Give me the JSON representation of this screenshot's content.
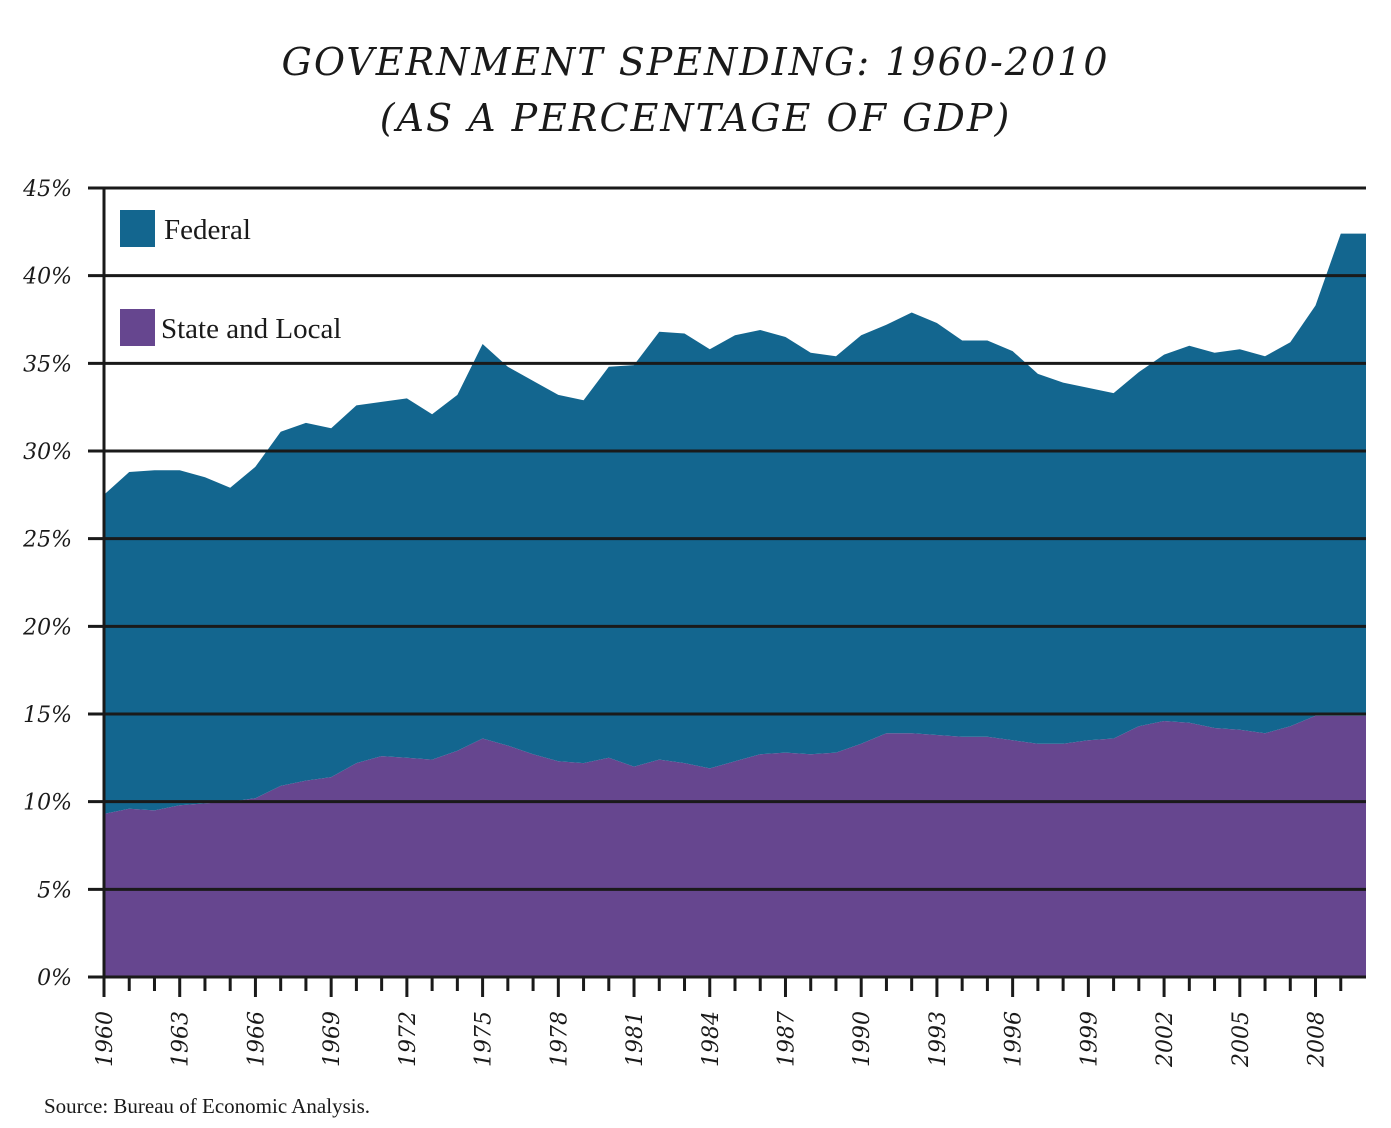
{
  "chart_data": {
    "type": "area",
    "title": "GOVERNMENT SPENDING: 1960-2010",
    "subtitle": "(AS A PERCENTAGE OF GDP)",
    "xlabel": "",
    "ylabel": "",
    "ylim": [
      0,
      45
    ],
    "xlim": [
      1960,
      2010
    ],
    "stacked": true,
    "grid": true,
    "legend": "top-left",
    "y_tick_labels": [
      "0%",
      "5%",
      "10%",
      "15%",
      "20%",
      "25%",
      "30%",
      "35%",
      "40%",
      "45%"
    ],
    "y_ticks": [
      0,
      5,
      10,
      15,
      20,
      25,
      30,
      35,
      40,
      45
    ],
    "x_tick_labels": [
      "1960",
      "1963",
      "1966",
      "1969",
      "1972",
      "1975",
      "1978",
      "1981",
      "1984",
      "1987",
      "1990",
      "1993",
      "1996",
      "1999",
      "2002",
      "2005",
      "2008"
    ],
    "x": [
      1960,
      1961,
      1962,
      1963,
      1964,
      1965,
      1966,
      1967,
      1968,
      1969,
      1970,
      1971,
      1972,
      1973,
      1974,
      1975,
      1976,
      1977,
      1978,
      1979,
      1980,
      1981,
      1982,
      1983,
      1984,
      1985,
      1986,
      1987,
      1988,
      1989,
      1990,
      1991,
      1992,
      1993,
      1994,
      1995,
      1996,
      1997,
      1998,
      1999,
      2000,
      2001,
      2002,
      2003,
      2004,
      2005,
      2006,
      2007,
      2008,
      2009,
      2010
    ],
    "series": [
      {
        "name": "State and Local",
        "color": "#66468f",
        "values": [
          9.3,
          9.6,
          9.5,
          9.8,
          9.9,
          10.0,
          10.2,
          10.9,
          11.2,
          11.4,
          12.2,
          12.6,
          12.5,
          12.4,
          12.9,
          13.6,
          13.2,
          12.7,
          12.3,
          12.2,
          12.5,
          12.0,
          12.4,
          12.2,
          11.9,
          12.3,
          12.7,
          12.8,
          12.7,
          12.8,
          13.3,
          13.9,
          13.9,
          13.8,
          13.7,
          13.7,
          13.5,
          13.3,
          13.3,
          13.5,
          13.6,
          14.3,
          14.6,
          14.5,
          14.2,
          14.1,
          13.9,
          14.3,
          14.9,
          14.9,
          14.9
        ]
      },
      {
        "name": "Federal",
        "color": "#13668f",
        "values": [
          18.2,
          19.2,
          19.4,
          19.1,
          18.6,
          17.9,
          18.9,
          20.2,
          20.4,
          19.9,
          20.4,
          20.2,
          20.5,
          19.7,
          20.3,
          22.5,
          21.6,
          21.3,
          20.9,
          20.7,
          22.3,
          22.9,
          24.4,
          24.5,
          23.9,
          24.3,
          24.2,
          23.7,
          22.9,
          22.6,
          23.3,
          23.3,
          24.0,
          23.5,
          22.6,
          22.6,
          22.2,
          21.1,
          20.6,
          20.1,
          19.7,
          20.2,
          20.9,
          21.5,
          21.4,
          21.7,
          21.5,
          21.9,
          23.4,
          27.5,
          27.5
        ]
      }
    ],
    "source": "Source: Bureau of Economic Analysis."
  }
}
